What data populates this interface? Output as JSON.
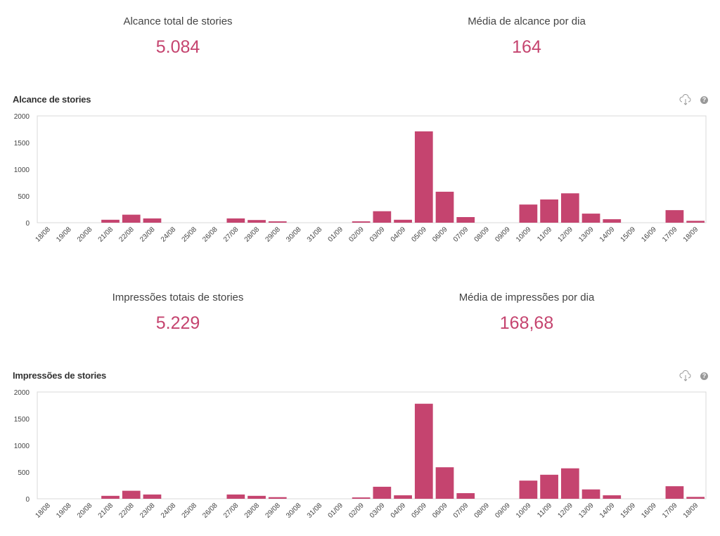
{
  "accent": "#c5446f",
  "section1": {
    "stats": [
      {
        "label": "Alcance total de stories",
        "value": "5.084"
      },
      {
        "label": "Média de alcance por dia",
        "value": "164"
      }
    ],
    "chart_title": "Alcance de stories",
    "download_icon": "cloud-download-icon",
    "help_icon": "question-icon",
    "help_symbol": "?"
  },
  "section2": {
    "stats": [
      {
        "label": "Impressões totais de stories",
        "value": "5.229"
      },
      {
        "label": "Média de impressões por dia",
        "value": "168,68"
      }
    ],
    "chart_title": "Impressões de stories",
    "download_icon": "cloud-download-icon",
    "help_icon": "question-icon",
    "help_symbol": "?"
  },
  "chart_data": [
    {
      "type": "bar",
      "title": "Alcance de stories",
      "xlabel": "",
      "ylabel": "",
      "ylim": [
        0,
        2000
      ],
      "yticks": [
        "0",
        "500",
        "1000",
        "1500",
        "2000"
      ],
      "categories": [
        "18/08",
        "19/08",
        "20/08",
        "21/08",
        "22/08",
        "23/08",
        "24/08",
        "25/08",
        "26/08",
        "27/08",
        "28/08",
        "29/08",
        "30/08",
        "31/08",
        "01/09",
        "02/09",
        "03/09",
        "04/09",
        "05/09",
        "06/09",
        "07/09",
        "08/09",
        "09/09",
        "10/09",
        "11/09",
        "12/09",
        "13/09",
        "14/09",
        "15/09",
        "16/09",
        "17/09",
        "18/09"
      ],
      "values": [
        0,
        0,
        0,
        55,
        150,
        80,
        0,
        0,
        0,
        80,
        50,
        25,
        0,
        0,
        0,
        25,
        215,
        55,
        1710,
        580,
        105,
        0,
        0,
        340,
        435,
        550,
        170,
        65,
        0,
        0,
        235,
        35
      ]
    },
    {
      "type": "bar",
      "title": "Impressões de stories",
      "xlabel": "",
      "ylabel": "",
      "ylim": [
        0,
        2000
      ],
      "yticks": [
        "0",
        "500",
        "1000",
        "1500",
        "2000"
      ],
      "categories": [
        "18/08",
        "19/08",
        "20/08",
        "21/08",
        "22/08",
        "23/08",
        "24/08",
        "25/08",
        "26/08",
        "27/08",
        "28/08",
        "29/08",
        "30/08",
        "31/08",
        "01/09",
        "02/09",
        "03/09",
        "04/09",
        "05/09",
        "06/09",
        "07/09",
        "08/09",
        "09/09",
        "10/09",
        "11/09",
        "12/09",
        "13/09",
        "14/09",
        "15/09",
        "16/09",
        "17/09",
        "18/09"
      ],
      "values": [
        0,
        0,
        0,
        55,
        150,
        80,
        0,
        0,
        0,
        80,
        55,
        30,
        0,
        0,
        0,
        25,
        225,
        65,
        1780,
        590,
        105,
        0,
        0,
        340,
        450,
        570,
        175,
        65,
        0,
        0,
        235,
        35
      ]
    }
  ]
}
